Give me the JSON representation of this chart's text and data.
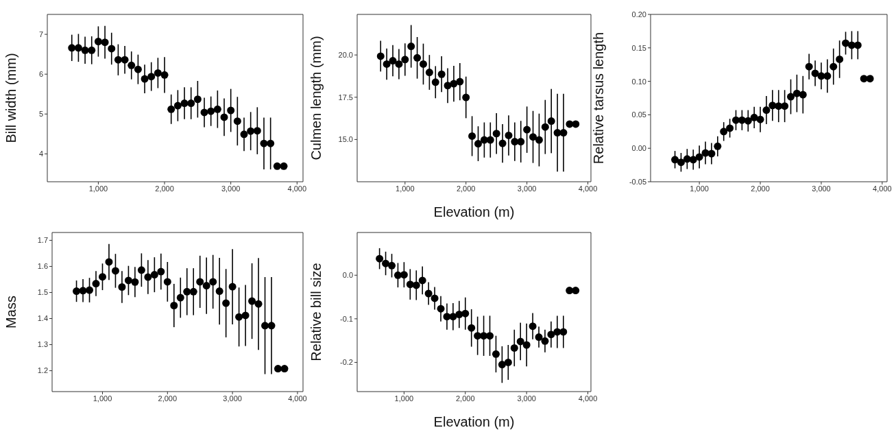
{
  "chart_data": [
    {
      "type": "scatter",
      "ylabel": "Bill width (mm)",
      "marker": "circle",
      "color": "#000000",
      "x": [
        600,
        700,
        800,
        900,
        1000,
        1100,
        1200,
        1300,
        1400,
        1500,
        1600,
        1700,
        1800,
        1900,
        2000,
        2100,
        2200,
        2300,
        2400,
        2500,
        2600,
        2700,
        2800,
        2900,
        3000,
        3100,
        3200,
        3300,
        3400,
        3500,
        3600,
        3700,
        3800
      ],
      "values": [
        6.66,
        6.66,
        6.6,
        6.6,
        6.82,
        6.8,
        6.64,
        6.36,
        6.36,
        6.22,
        6.12,
        5.88,
        5.94,
        6.03,
        5.98,
        5.12,
        5.21,
        5.27,
        5.27,
        5.37,
        5.04,
        5.07,
        5.12,
        4.92,
        5.09,
        4.82,
        4.49,
        4.57,
        4.58,
        4.26,
        4.26,
        3.69,
        3.69
      ],
      "errors": [
        0.33,
        0.35,
        0.34,
        0.35,
        0.38,
        0.41,
        0.4,
        0.39,
        0.35,
        0.35,
        0.37,
        0.36,
        0.36,
        0.38,
        0.45,
        0.37,
        0.39,
        0.4,
        0.4,
        0.46,
        0.37,
        0.37,
        0.47,
        0.47,
        0.54,
        0.61,
        0.42,
        0.48,
        0.59,
        0.65,
        0.65,
        null,
        null
      ],
      "xlim": [
        230,
        4090
      ],
      "ylim": [
        3.3,
        7.5
      ],
      "xticks": [
        {
          "value": 1000,
          "label": "1,000"
        },
        {
          "value": 2000,
          "label": "2,000"
        },
        {
          "value": 3000,
          "label": "3,000"
        },
        {
          "value": 4000,
          "label": "4,000"
        }
      ],
      "yticks": [
        4,
        5,
        6,
        7
      ]
    },
    {
      "type": "scatter",
      "ylabel": "Culmen length (mm)",
      "xlabel": "Elevation (m)",
      "marker": "circle",
      "color": "#000000",
      "x": [
        600,
        700,
        800,
        900,
        1000,
        1100,
        1200,
        1300,
        1400,
        1500,
        1600,
        1700,
        1800,
        1900,
        2000,
        2100,
        2200,
        2300,
        2400,
        2500,
        2600,
        2700,
        2800,
        2900,
        3000,
        3100,
        3200,
        3300,
        3400,
        3500,
        3600,
        3700,
        3800
      ],
      "values": [
        19.93,
        19.46,
        19.66,
        19.46,
        19.73,
        20.51,
        19.83,
        19.46,
        18.97,
        18.39,
        18.86,
        18.19,
        18.3,
        18.42,
        17.49,
        15.2,
        14.75,
        14.97,
        14.97,
        15.35,
        14.77,
        15.24,
        14.87,
        14.87,
        15.58,
        15.15,
        14.97,
        15.74,
        16.09,
        15.4,
        15.4,
        15.91,
        15.91
      ],
      "errors": [
        0.91,
        0.92,
        0.92,
        0.89,
        0.96,
        1.26,
        1.23,
        1.21,
        1.03,
        0.95,
        1.06,
        1.03,
        1.06,
        1.1,
        1.23,
        1.18,
        1.03,
        1.04,
        1.04,
        1.21,
        1.14,
        1.19,
        1.14,
        1.23,
        1.37,
        1.54,
        1.56,
        1.6,
        1.9,
        2.3,
        2.3,
        null,
        null
      ],
      "xlim": [
        215,
        4050
      ],
      "ylim": [
        12.5,
        22.4
      ],
      "xticks": [
        {
          "value": 1000,
          "label": "1,000"
        },
        {
          "value": 2000,
          "label": "2,000"
        },
        {
          "value": 3000,
          "label": "3,000"
        },
        {
          "value": 4000,
          "label": "4,000"
        }
      ],
      "yticks": [
        {
          "value": 15,
          "label": "15.0"
        },
        {
          "value": 17.5,
          "label": "17.5"
        },
        {
          "value": 20,
          "label": "20.0"
        }
      ]
    },
    {
      "type": "scatter",
      "ylabel": "Relative tarsus length",
      "marker": "circle",
      "color": "#000000",
      "x": [
        600,
        700,
        800,
        900,
        1000,
        1100,
        1200,
        1300,
        1400,
        1500,
        1600,
        1700,
        1800,
        1900,
        2000,
        2100,
        2200,
        2300,
        2400,
        2500,
        2600,
        2700,
        2800,
        2900,
        3000,
        3100,
        3200,
        3300,
        3400,
        3500,
        3600,
        3700,
        3800
      ],
      "values": [
        -0.017,
        -0.021,
        -0.016,
        -0.017,
        -0.013,
        -0.007,
        -0.008,
        0.003,
        0.025,
        0.03,
        0.042,
        0.042,
        0.041,
        0.046,
        0.043,
        0.057,
        0.064,
        0.063,
        0.063,
        0.077,
        0.082,
        0.08,
        0.122,
        0.112,
        0.108,
        0.108,
        0.122,
        0.133,
        0.157,
        0.154,
        0.154,
        0.104,
        0.104
      ],
      "errors": [
        0.013,
        0.014,
        0.015,
        0.015,
        0.017,
        0.017,
        0.016,
        0.015,
        0.014,
        0.014,
        0.015,
        0.015,
        0.016,
        0.016,
        0.019,
        0.021,
        0.023,
        0.024,
        0.024,
        0.026,
        0.028,
        0.028,
        0.019,
        0.019,
        0.02,
        0.025,
        0.027,
        0.028,
        0.017,
        0.021,
        0.021,
        null,
        null
      ],
      "xlim": [
        200,
        4080
      ],
      "ylim": [
        -0.05,
        0.2
      ],
      "xticks": [
        {
          "value": 1000,
          "label": "1,000"
        },
        {
          "value": 2000,
          "label": "2,000"
        },
        {
          "value": 3000,
          "label": "3,000"
        },
        {
          "value": 4000,
          "label": "4,000"
        }
      ],
      "yticks": [
        {
          "value": -0.05,
          "label": "-0.05"
        },
        {
          "value": 0,
          "label": "0.00"
        },
        {
          "value": 0.05,
          "label": "0.05"
        },
        {
          "value": 0.1,
          "label": "0.10"
        },
        {
          "value": 0.15,
          "label": "0.15"
        },
        {
          "value": 0.2,
          "label": "0.20"
        }
      ]
    },
    {
      "type": "scatter",
      "ylabel": "Mass",
      "marker": "circle",
      "color": "#000000",
      "x": [
        600,
        700,
        800,
        900,
        1000,
        1100,
        1200,
        1300,
        1400,
        1500,
        1600,
        1700,
        1800,
        1900,
        2000,
        2100,
        2200,
        2300,
        2400,
        2500,
        2600,
        2700,
        2800,
        2900,
        3000,
        3100,
        3200,
        3300,
        3400,
        3500,
        3600,
        3700,
        3800
      ],
      "values": [
        1.505,
        1.507,
        1.509,
        1.534,
        1.56,
        1.617,
        1.583,
        1.521,
        1.546,
        1.54,
        1.586,
        1.559,
        1.568,
        1.58,
        1.541,
        1.45,
        1.48,
        1.503,
        1.503,
        1.541,
        1.526,
        1.541,
        1.505,
        1.459,
        1.522,
        1.406,
        1.412,
        1.467,
        1.456,
        1.373,
        1.373,
        1.208,
        1.208
      ],
      "errors": [
        0.041,
        0.044,
        0.047,
        0.048,
        0.051,
        0.069,
        0.065,
        0.061,
        0.056,
        0.058,
        0.064,
        0.065,
        0.067,
        0.069,
        0.076,
        0.083,
        0.077,
        0.09,
        0.09,
        0.1,
        0.108,
        0.103,
        0.128,
        0.131,
        0.144,
        0.113,
        0.117,
        0.145,
        0.176,
        0.186,
        0.186,
        null,
        null
      ],
      "xlim": [
        225,
        4085
      ],
      "ylim": [
        1.12,
        1.73
      ],
      "xticks": [
        {
          "value": 1000,
          "label": "1,000"
        },
        {
          "value": 2000,
          "label": "2,000"
        },
        {
          "value": 3000,
          "label": "3,000"
        },
        {
          "value": 4000,
          "label": "4,000"
        }
      ],
      "yticks": [
        1.2,
        1.3,
        1.4,
        1.5,
        1.6,
        1.7
      ]
    },
    {
      "type": "scatter",
      "ylabel": "Relative bill size",
      "xlabel": "Elevation (m)",
      "marker": "circle",
      "color": "#000000",
      "x": [
        600,
        700,
        800,
        900,
        1000,
        1100,
        1200,
        1300,
        1400,
        1500,
        1600,
        1700,
        1800,
        1900,
        2000,
        2100,
        2200,
        2300,
        2400,
        2500,
        2600,
        2700,
        2800,
        2900,
        3000,
        3100,
        3200,
        3300,
        3400,
        3500,
        3600,
        3700,
        3800
      ],
      "values": [
        0.038,
        0.027,
        0.022,
        0.0,
        0.001,
        -0.021,
        -0.023,
        -0.012,
        -0.042,
        -0.053,
        -0.077,
        -0.095,
        -0.095,
        -0.09,
        -0.088,
        -0.121,
        -0.139,
        -0.139,
        -0.139,
        -0.181,
        -0.205,
        -0.2,
        -0.167,
        -0.152,
        -0.16,
        -0.117,
        -0.142,
        -0.151,
        -0.136,
        -0.13,
        -0.13,
        -0.035,
        -0.035
      ],
      "errors": [
        0.024,
        0.027,
        0.027,
        0.028,
        0.029,
        0.035,
        0.034,
        0.032,
        0.026,
        0.026,
        0.029,
        0.03,
        0.031,
        0.031,
        0.037,
        0.043,
        0.044,
        0.046,
        0.046,
        0.042,
        0.042,
        0.04,
        0.042,
        0.043,
        0.049,
        0.03,
        0.024,
        0.026,
        0.03,
        0.037,
        0.037,
        null,
        null
      ],
      "xlim": [
        235,
        4050
      ],
      "ylim": [
        -0.267,
        0.098
      ],
      "xticks": [
        {
          "value": 1000,
          "label": "1,000"
        },
        {
          "value": 2000,
          "label": "2,000"
        },
        {
          "value": 3000,
          "label": "3,000"
        },
        {
          "value": 4000,
          "label": "4,000"
        }
      ],
      "yticks": [
        {
          "value": -0.2,
          "label": "-0.2"
        },
        {
          "value": -0.1,
          "label": "-0.1"
        },
        {
          "value": 0,
          "label": "0.0"
        }
      ]
    }
  ]
}
